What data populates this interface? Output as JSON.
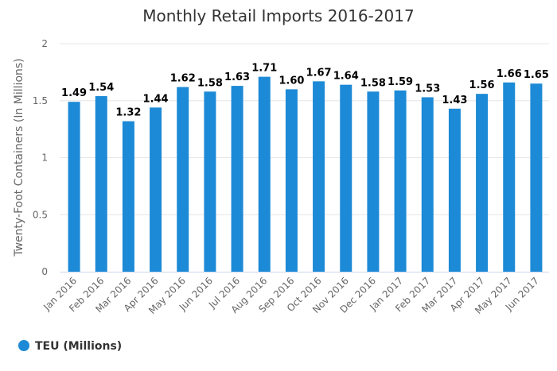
{
  "chart_data": {
    "type": "bar",
    "title": "Monthly Retail Imports 2016-2017",
    "ylabel": "Twenty-Foot Containers (In Millions)",
    "xlabel": "",
    "ylim": [
      0,
      2
    ],
    "yticks": [
      0,
      0.5,
      1,
      1.5,
      2
    ],
    "ytick_labels": [
      "0",
      "0.5",
      "1",
      "1.5",
      "2"
    ],
    "grid": true,
    "legend_position": "bottom-left",
    "categories": [
      "Jan 2016",
      "Feb 2016",
      "Mar 2016",
      "Apr 2016",
      "May 2016",
      "Jun 2016",
      "Jul 2016",
      "Aug 2016",
      "Sep 2016",
      "Oct 2016",
      "Nov 2016",
      "Dec 2016",
      "Jan 2017",
      "Feb 2017",
      "Mar 2017",
      "Apr 2017",
      "May 2017",
      "Jun 2017"
    ],
    "series": [
      {
        "name": "TEU (Millions)",
        "color": "#1c8ad6",
        "values": [
          1.49,
          1.54,
          1.32,
          1.44,
          1.62,
          1.58,
          1.63,
          1.71,
          1.6,
          1.67,
          1.64,
          1.58,
          1.59,
          1.53,
          1.43,
          1.56,
          1.66,
          1.65
        ],
        "value_labels": [
          "1.49",
          "1.54",
          "1.32",
          "1.44",
          "1.62",
          "1.58",
          "1.63",
          "1.71",
          "1.60",
          "1.67",
          "1.64",
          "1.58",
          "1.59",
          "1.53",
          "1.43",
          "1.56",
          "1.66",
          "1.65"
        ]
      }
    ]
  }
}
